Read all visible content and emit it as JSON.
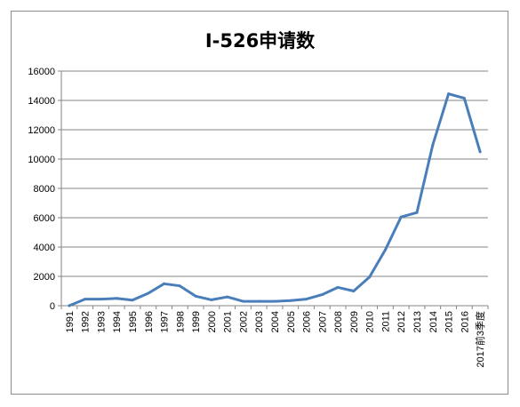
{
  "chart_data": {
    "type": "line",
    "title": "I-526申请数",
    "xlabel": "",
    "ylabel": "",
    "ylim": [
      0,
      16000
    ],
    "yticks": [
      0,
      2000,
      4000,
      6000,
      8000,
      10000,
      12000,
      14000,
      16000
    ],
    "grid": true,
    "legend": "none",
    "categories": [
      "1991",
      "1992",
      "1993",
      "1994",
      "1995",
      "1996",
      "1997",
      "1998",
      "1999",
      "2000",
      "2001",
      "2002",
      "2003",
      "2004",
      "2005",
      "2006",
      "2007",
      "2008",
      "2009",
      "2010",
      "2011",
      "2012",
      "2013",
      "2014",
      "2015",
      "2016",
      "2017前3季度"
    ],
    "series": [
      {
        "values": [
          0,
          450,
          450,
          500,
          380,
          850,
          1500,
          1350,
          650,
          400,
          600,
          300,
          300,
          300,
          350,
          450,
          750,
          1250,
          1000,
          1950,
          3800,
          6050,
          6350,
          10950,
          14450,
          14150,
          10500
        ],
        "color": "#4a7ebb"
      }
    ]
  }
}
